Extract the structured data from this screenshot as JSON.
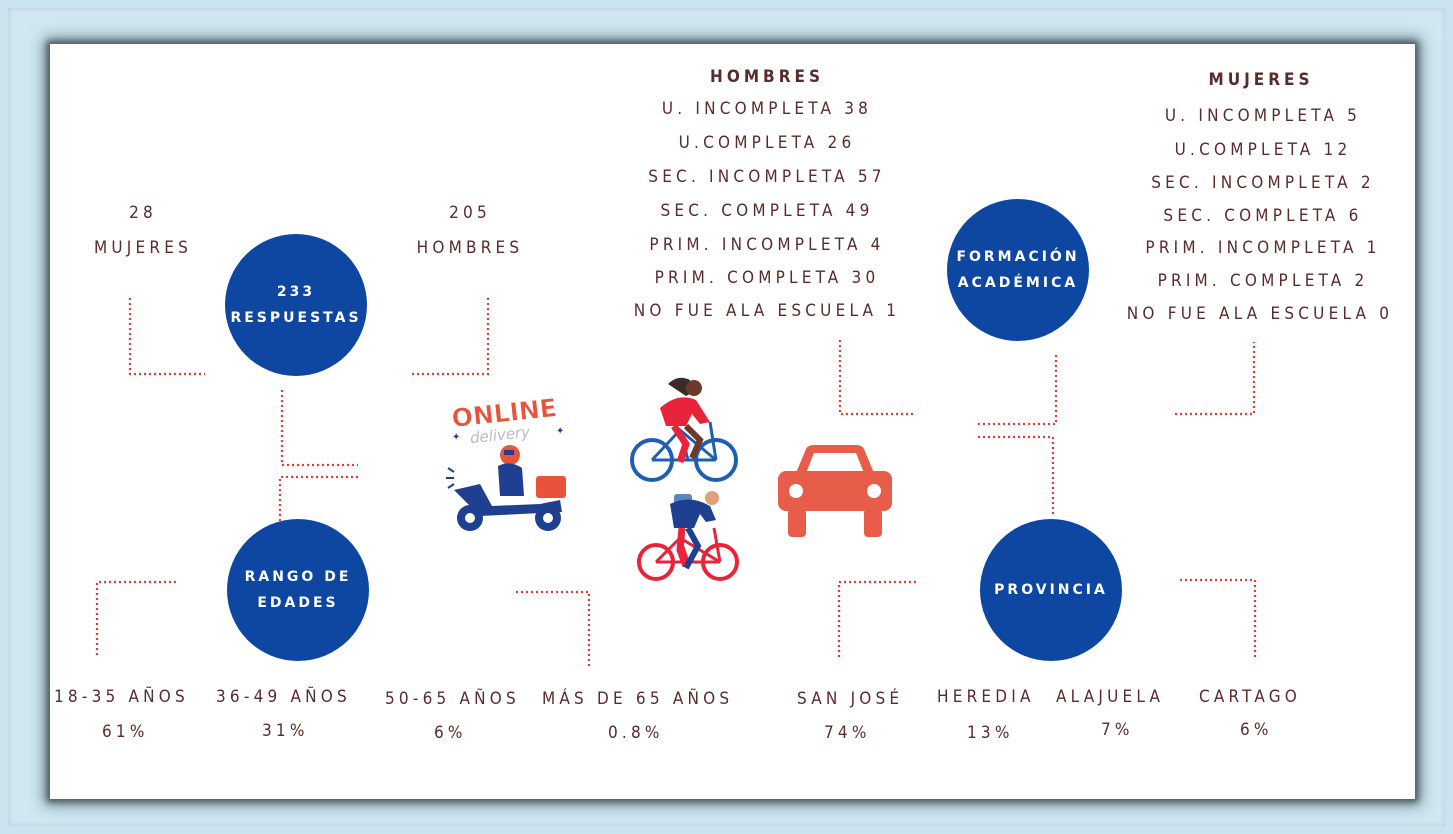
{
  "colors": {
    "circle": "#0d47a1",
    "text": "#5a2b2b",
    "dots": "#e53935",
    "car": "#e85d4a"
  },
  "circles": {
    "respuestas": [
      "233",
      "RESPUESTAS"
    ],
    "rango": [
      "RANGO DE",
      "EDADES"
    ],
    "formacion": [
      "FORMACIÓN",
      "ACADÉMICA"
    ],
    "provincia": [
      "PROVINCIA"
    ]
  },
  "totals": {
    "mujeres_count": "28",
    "mujeres_label": "MUJERES",
    "hombres_count": "205",
    "hombres_label": "HOMBRES"
  },
  "formacion_hombres": {
    "heading": "HOMBRES",
    "rows": [
      "U. INCOMPLETA 38",
      "U.COMPLETA 26",
      "SEC. INCOMPLETA 57",
      "SEC. COMPLETA 49",
      "PRIM. INCOMPLETA 4",
      "PRIM. COMPLETA 30",
      "NO FUE ALA ESCUELA 1"
    ]
  },
  "formacion_mujeres": {
    "heading": "MUJERES",
    "rows": [
      "U. INCOMPLETA 5",
      "U.COMPLETA 12",
      "SEC. INCOMPLETA 2",
      "SEC. COMPLETA 6",
      "PRIM. INCOMPLETA 1",
      "PRIM. COMPLETA 2",
      "NO FUE ALA ESCUELA 0"
    ]
  },
  "edades": [
    {
      "label": "18-35 AÑOS",
      "value": "61%"
    },
    {
      "label": "36-49 AÑOS",
      "value": "31%"
    },
    {
      "label": "50-65 AÑOS",
      "value": "6%"
    },
    {
      "label": "MÁS DE 65 AÑOS",
      "value": "0.8%"
    }
  ],
  "provincias": [
    {
      "label": "SAN JOSÉ",
      "value": "74%"
    },
    {
      "label": "HEREDIA",
      "value": "13%"
    },
    {
      "label": "ALAJUELA",
      "value": "7%"
    },
    {
      "label": "CARTAGO",
      "value": "6%"
    }
  ],
  "logo": {
    "line1": "ONLINE",
    "line2": "delivery"
  },
  "icons": [
    "delivery-scooter-icon",
    "cyclist-woman-icon",
    "cyclist-man-icon",
    "car-icon"
  ]
}
